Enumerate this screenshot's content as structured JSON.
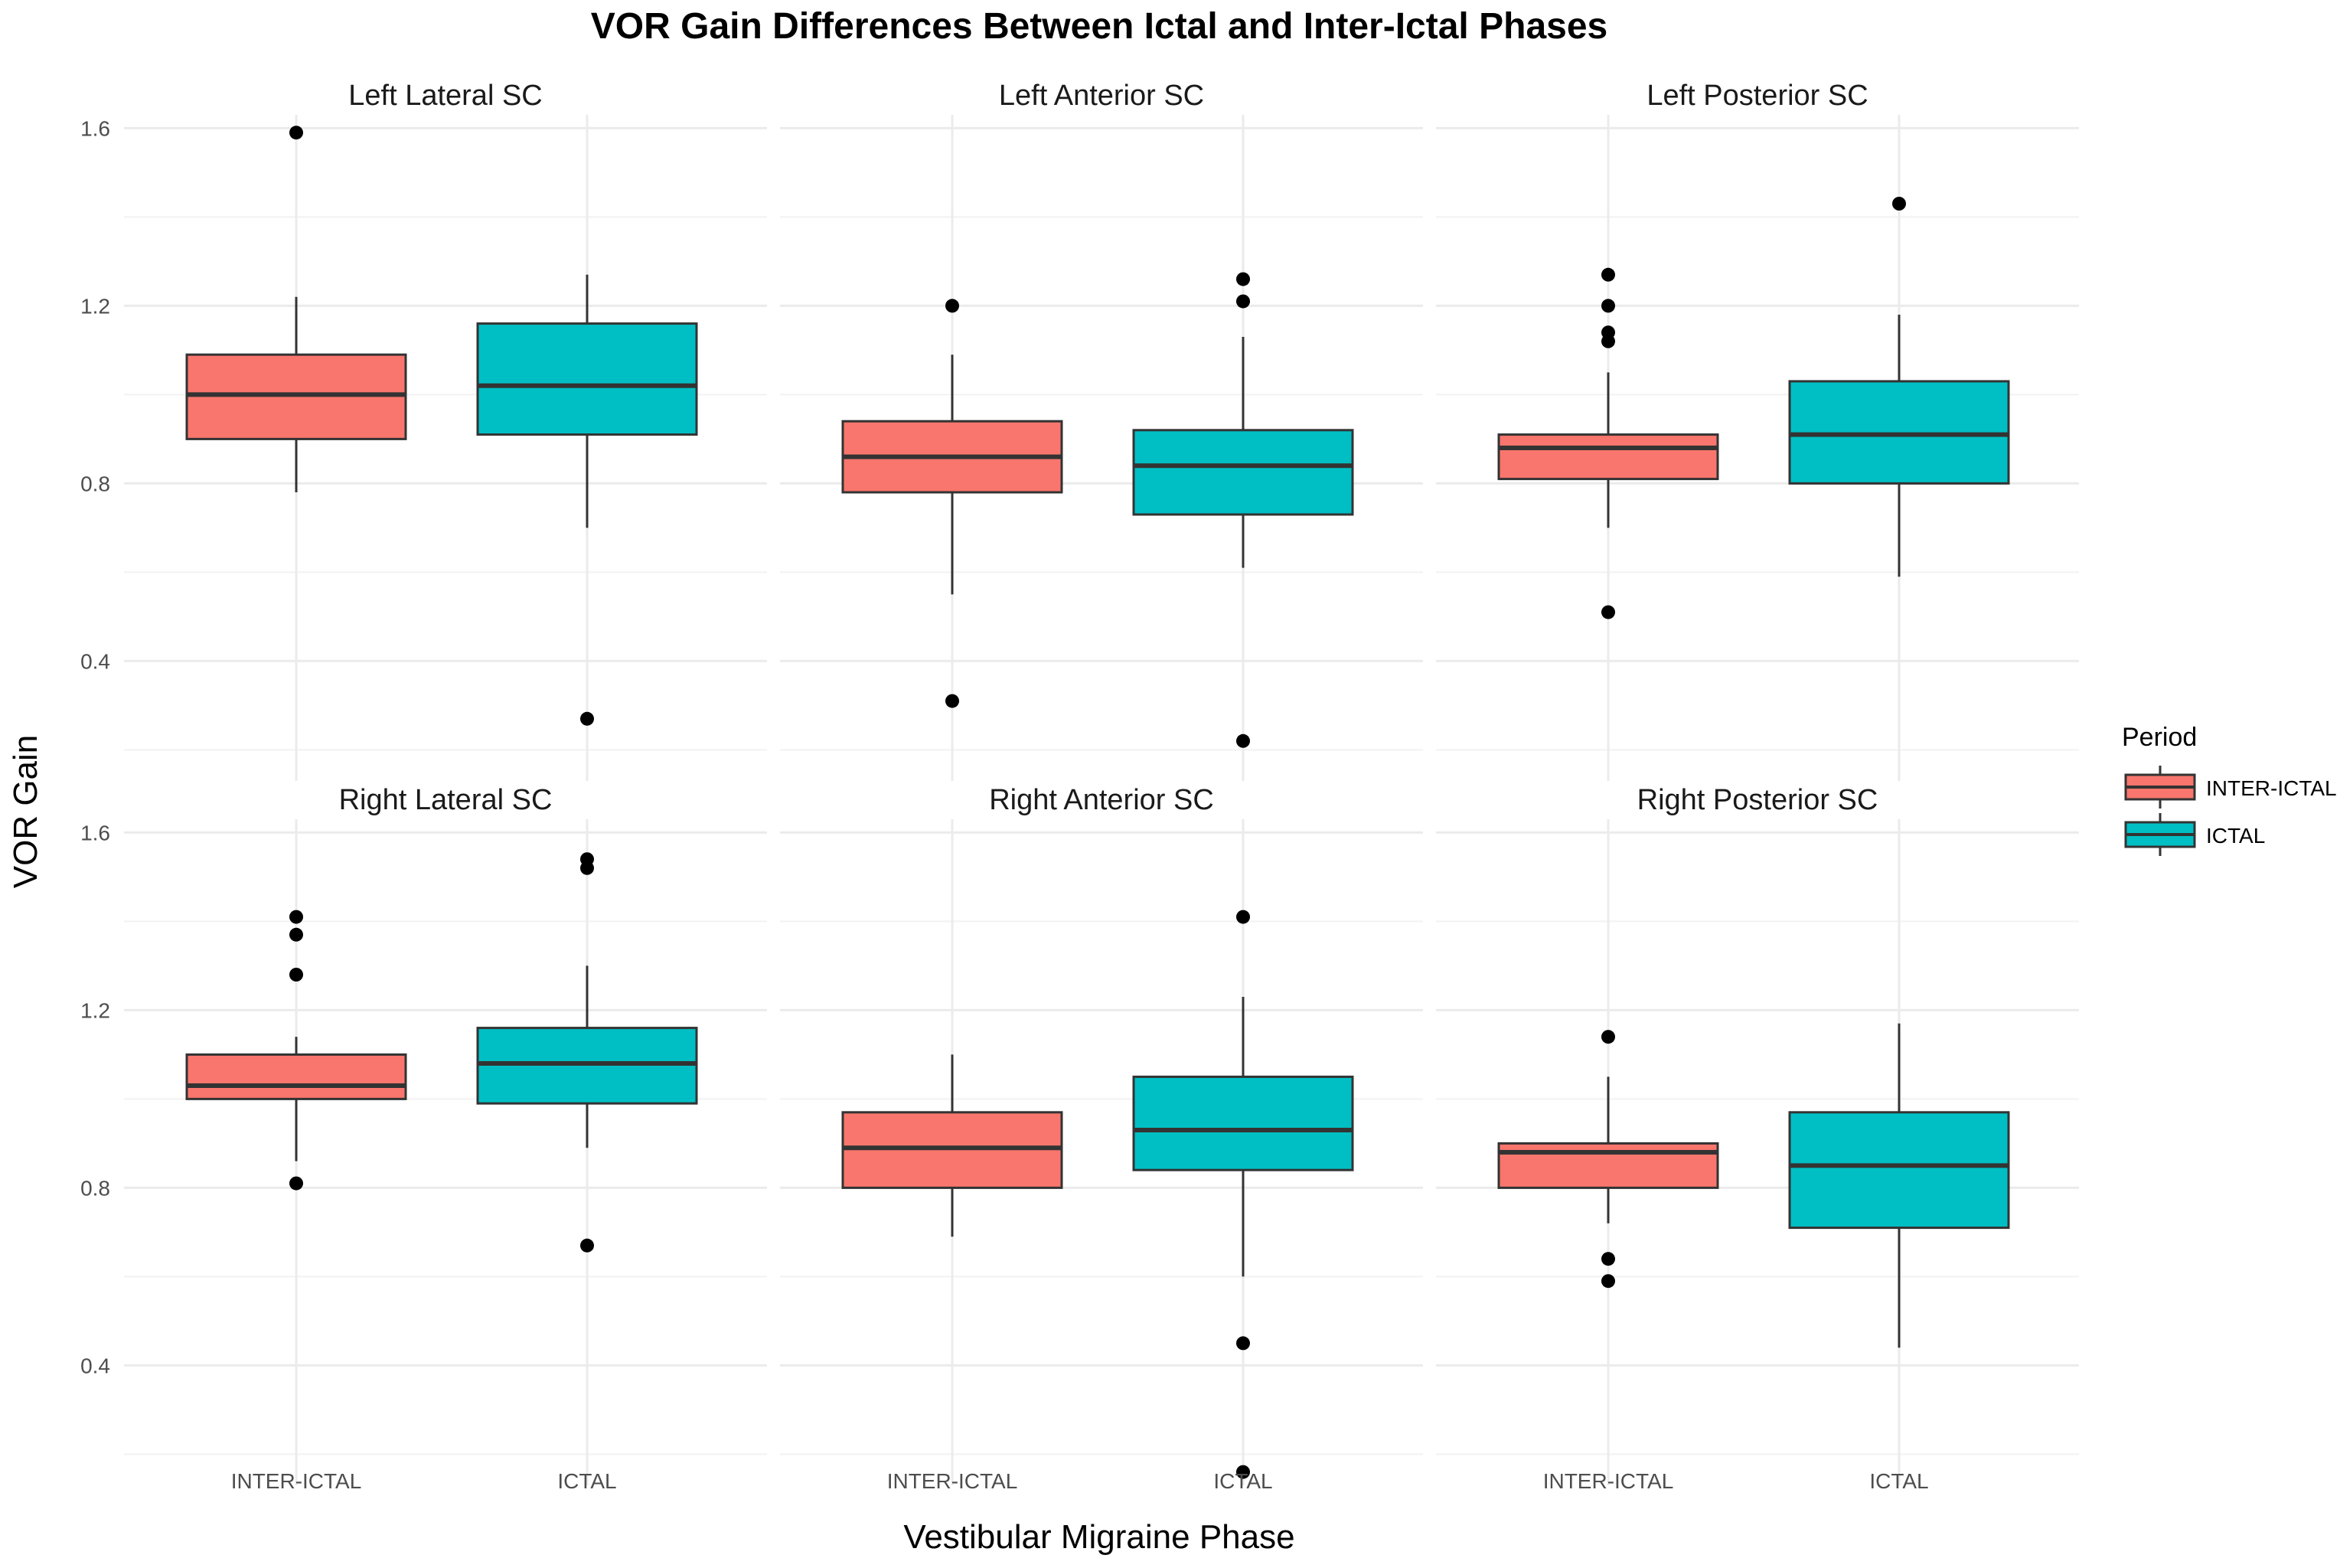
{
  "chart_data": {
    "type": "boxplot",
    "title": "VOR Gain Differences Between Ictal and Inter-Ictal Phases",
    "xlabel": "Vestibular Migraine Phase",
    "ylabel": "VOR Gain",
    "categories": [
      "INTER-ICTAL",
      "ICTAL"
    ],
    "y_ticks": [
      "0.4",
      "0.8",
      "1.2",
      "1.6"
    ],
    "ylim": [
      0.13,
      1.63
    ],
    "legend": {
      "title": "Period",
      "position": "right",
      "entries": [
        {
          "label": "INTER-ICTAL",
          "color": "#F8766D"
        },
        {
          "label": "ICTAL",
          "color": "#00BFC4"
        }
      ]
    },
    "panels": [
      {
        "name": "Left Lateral SC",
        "boxes": [
          {
            "category": "INTER-ICTAL",
            "whisker_low": 0.78,
            "q1": 0.9,
            "median": 1.0,
            "q3": 1.09,
            "whisker_high": 1.22,
            "outliers": [
              1.59
            ]
          },
          {
            "category": "ICTAL",
            "whisker_low": 0.7,
            "q1": 0.91,
            "median": 1.02,
            "q3": 1.16,
            "whisker_high": 1.27,
            "outliers": [
              0.27
            ]
          }
        ]
      },
      {
        "name": "Left Anterior SC",
        "boxes": [
          {
            "category": "INTER-ICTAL",
            "whisker_low": 0.55,
            "q1": 0.78,
            "median": 0.86,
            "q3": 0.94,
            "whisker_high": 1.09,
            "outliers": [
              1.2,
              0.31
            ]
          },
          {
            "category": "ICTAL",
            "whisker_low": 0.61,
            "q1": 0.73,
            "median": 0.84,
            "q3": 0.92,
            "whisker_high": 1.13,
            "outliers": [
              1.26,
              1.21,
              0.22
            ]
          }
        ]
      },
      {
        "name": "Left Posterior SC",
        "boxes": [
          {
            "category": "INTER-ICTAL",
            "whisker_low": 0.7,
            "q1": 0.81,
            "median": 0.88,
            "q3": 0.91,
            "whisker_high": 1.05,
            "outliers": [
              1.27,
              1.2,
              1.14,
              1.12,
              0.51
            ]
          },
          {
            "category": "ICTAL",
            "whisker_low": 0.59,
            "q1": 0.8,
            "median": 0.91,
            "q3": 1.03,
            "whisker_high": 1.18,
            "outliers": [
              1.43
            ]
          }
        ]
      },
      {
        "name": "Right Lateral SC",
        "boxes": [
          {
            "category": "INTER-ICTAL",
            "whisker_low": 0.86,
            "q1": 1.0,
            "median": 1.03,
            "q3": 1.1,
            "whisker_high": 1.14,
            "outliers": [
              1.41,
              1.37,
              1.28,
              0.81
            ]
          },
          {
            "category": "ICTAL",
            "whisker_low": 0.89,
            "q1": 0.99,
            "median": 1.08,
            "q3": 1.16,
            "whisker_high": 1.3,
            "outliers": [
              1.54,
              1.52,
              0.67
            ]
          }
        ]
      },
      {
        "name": "Right Anterior SC",
        "boxes": [
          {
            "category": "INTER-ICTAL",
            "whisker_low": 0.69,
            "q1": 0.8,
            "median": 0.89,
            "q3": 0.97,
            "whisker_high": 1.1,
            "outliers": []
          },
          {
            "category": "ICTAL",
            "whisker_low": 0.6,
            "q1": 0.84,
            "median": 0.93,
            "q3": 1.05,
            "whisker_high": 1.23,
            "outliers": [
              1.41,
              0.45,
              0.16
            ]
          }
        ]
      },
      {
        "name": "Right Posterior SC",
        "boxes": [
          {
            "category": "INTER-ICTAL",
            "whisker_low": 0.72,
            "q1": 0.8,
            "median": 0.88,
            "q3": 0.9,
            "whisker_high": 1.05,
            "outliers": [
              1.14,
              0.64,
              0.59
            ]
          },
          {
            "category": "ICTAL",
            "whisker_low": 0.44,
            "q1": 0.71,
            "median": 0.85,
            "q3": 0.97,
            "whisker_high": 1.17,
            "outliers": []
          }
        ]
      }
    ]
  }
}
